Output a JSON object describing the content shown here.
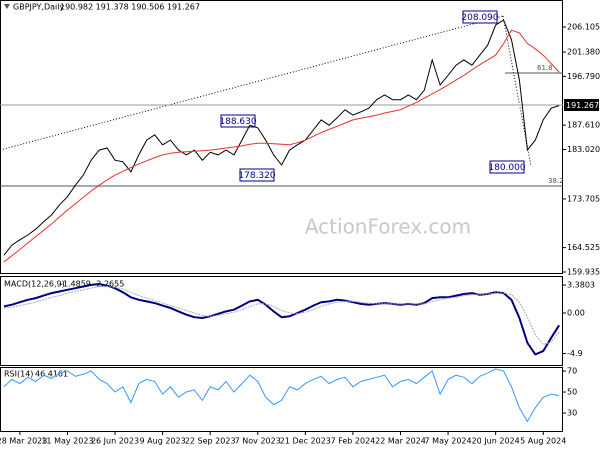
{
  "chart_data": [
    {
      "type": "line",
      "title": "GBPJPY,Daily",
      "subtitle": "190.982 191.378 190.506 191.267",
      "categories": [
        null,
        null,
        "28 Mar 2023",
        null,
        null,
        null,
        null,
        null,
        "11 May 2023",
        null,
        null,
        null,
        null,
        null,
        "26 Jun 2023",
        null,
        null,
        null,
        null,
        null,
        "9 Aug 2023",
        null,
        null,
        null,
        null,
        null,
        "22 Sep 2023",
        null,
        null,
        null,
        null,
        null,
        "7 Nov 2023",
        null,
        null,
        null,
        null,
        null,
        "21 Dec 2023",
        null,
        null,
        null,
        null,
        null,
        "7 Feb 2024",
        null,
        null,
        null,
        null,
        null,
        "22 Mar 2024",
        null,
        null,
        null,
        null,
        null,
        "7 May 2024",
        null,
        null,
        null,
        null,
        null,
        "20 Jun 2024",
        null,
        null,
        null,
        null,
        null,
        "5 Aug 2024",
        null,
        null
      ],
      "series": [
        {
          "color": "#000000",
          "values": [
            163.1,
            165,
            166,
            166.9,
            168,
            169.4,
            170.7,
            172.6,
            174.1,
            176.3,
            178.2,
            181,
            182.9,
            183.3,
            181,
            180.7,
            178.8,
            182,
            184.8,
            185.8,
            183.9,
            184.8,
            182.9,
            182,
            182.9,
            181,
            182.5,
            182,
            182.9,
            182,
            184.8,
            187.6,
            187.1,
            184.8,
            182,
            180.1,
            182.9,
            183.9,
            184.8,
            186.7,
            188.6,
            187.6,
            189,
            190.5,
            189.5,
            190.1,
            190.8,
            192.4,
            193.3,
            192.4,
            192.4,
            193.3,
            192.4,
            194.2,
            199.9,
            195.2,
            197,
            198.9,
            199.9,
            198.9,
            200.8,
            202.7,
            206.5,
            207.4,
            203.7,
            196.1,
            182.9,
            184.8,
            188.6,
            190.8,
            191.3
          ]
        },
        {
          "color": "#e8322d",
          "values": [
            161.8,
            163,
            164.2,
            165.4,
            166.6,
            167.8,
            169,
            170.3,
            171.6,
            172.8,
            174,
            175.2,
            176.3,
            177.3,
            178.2,
            178.9,
            179.6,
            180.3,
            180.9,
            181.5,
            182,
            182.3,
            182.5,
            182.6,
            182.7,
            182.8,
            182.9,
            183.1,
            183.3,
            183.5,
            183.7,
            184,
            184.2,
            184.2,
            184.1,
            184,
            183.9,
            184.3,
            184.8,
            185.5,
            186.2,
            186.8,
            187.4,
            188,
            188.6,
            188.9,
            189.2,
            189.5,
            189.9,
            190.2,
            190.5,
            191.2,
            191.9,
            192.7,
            193.5,
            194.3,
            195.2,
            196.1,
            197,
            198,
            199,
            199.9,
            200.8,
            203,
            205.5,
            205,
            203,
            202,
            200.8,
            199.2,
            197.6
          ]
        }
      ],
      "ylim": [
        159.18,
        210.63
      ],
      "yticks": [
        206.105,
        {
          "value": 201.38,
          "label": "201.380"
        },
        {
          "value": 196.79,
          "label": "196.790"
        },
        {
          "value": 187.61,
          "label": "187.610"
        },
        {
          "value": 183.02,
          "label": "183.020"
        },
        173.705,
        164.525,
        159.935
      ],
      "annotations": {
        "high": "208.090",
        "mid_high": "188.630",
        "mid_low": "178.320",
        "low": "180.000",
        "fib_618": "61.8",
        "fib_382": "38.2",
        "price_label": "191.267",
        "watermark": "ActionForex.com"
      }
    },
    {
      "type": "line",
      "title": "MACD(12,26,9)",
      "subtitle": "-1.4859 -2.2655",
      "series": [
        {
          "color": "#000080",
          "values": [
            0.8,
            1.0,
            1.3,
            1.6,
            1.8,
            2.1,
            2.4,
            2.6,
            2.8,
            3.0,
            3.2,
            3.4,
            3.5,
            3.3,
            3.0,
            2.5,
            1.9,
            1.6,
            1.4,
            1.2,
            0.9,
            0.6,
            0.2,
            -0.2,
            -0.5,
            -0.6,
            -0.4,
            -0.1,
            0.2,
            0.4,
            0.9,
            1.4,
            1.6,
            1.0,
            0.2,
            -0.5,
            -0.4,
            0.0,
            0.4,
            0.9,
            1.3,
            1.4,
            1.6,
            1.5,
            1.3,
            1.1,
            1.0,
            1.1,
            1.2,
            1.1,
            1.0,
            1.1,
            1.0,
            1.2,
            1.8,
            1.9,
            1.9,
            2.1,
            2.3,
            2.4,
            2.2,
            2.3,
            2.5,
            2.4,
            1.6,
            -0.6,
            -3.6,
            -5.0,
            -4.6,
            -3.0,
            -1.49
          ]
        },
        {
          "color": "#aaaaaa",
          "values": [
            0.6,
            0.7,
            0.9,
            1.1,
            1.3,
            1.6,
            1.9,
            2.1,
            2.4,
            2.6,
            2.8,
            3.0,
            3.2,
            3.2,
            3.1,
            2.9,
            2.5,
            2.1,
            1.8,
            1.5,
            1.2,
            0.9,
            0.6,
            0.3,
            0.0,
            -0.3,
            -0.4,
            -0.3,
            -0.1,
            0.1,
            0.4,
            0.8,
            1.1,
            1.1,
            0.8,
            0.3,
            0.0,
            -0.1,
            0.1,
            0.4,
            0.8,
            1.1,
            1.3,
            1.4,
            1.4,
            1.3,
            1.2,
            1.1,
            1.1,
            1.1,
            1.1,
            1.1,
            1.1,
            1.1,
            1.4,
            1.6,
            1.8,
            1.9,
            2.1,
            2.2,
            2.3,
            2.3,
            2.4,
            2.4,
            2.2,
            1.3,
            -0.5,
            -2.6,
            -3.8,
            -3.5,
            -2.27
          ]
        }
      ],
      "ylim": [
        -6.28,
        4.35
      ],
      "yticks": [
        3.3803,
        {
          "value": 0,
          "label": "0.00"
        },
        -4.9
      ]
    },
    {
      "type": "line",
      "title": "RSI(14)",
      "subtitle": "46.4161",
      "series": [
        {
          "color": "#3399ff",
          "values": [
            55,
            62,
            58,
            64,
            60,
            66,
            63,
            68,
            70,
            65,
            67,
            70,
            62,
            58,
            50,
            55,
            40,
            58,
            62,
            60,
            48,
            55,
            45,
            50,
            52,
            42,
            55,
            52,
            60,
            50,
            58,
            66,
            60,
            45,
            38,
            42,
            55,
            52,
            58,
            62,
            65,
            58,
            62,
            64,
            55,
            60,
            62,
            64,
            66,
            55,
            60,
            62,
            58,
            64,
            70,
            48,
            62,
            66,
            64,
            58,
            65,
            68,
            72,
            70,
            55,
            35,
            22,
            35,
            45,
            48,
            46.4
          ]
        }
      ],
      "ylim": [
        12.9,
        72.9
      ],
      "yticks": [
        70,
        50,
        30
      ]
    }
  ]
}
